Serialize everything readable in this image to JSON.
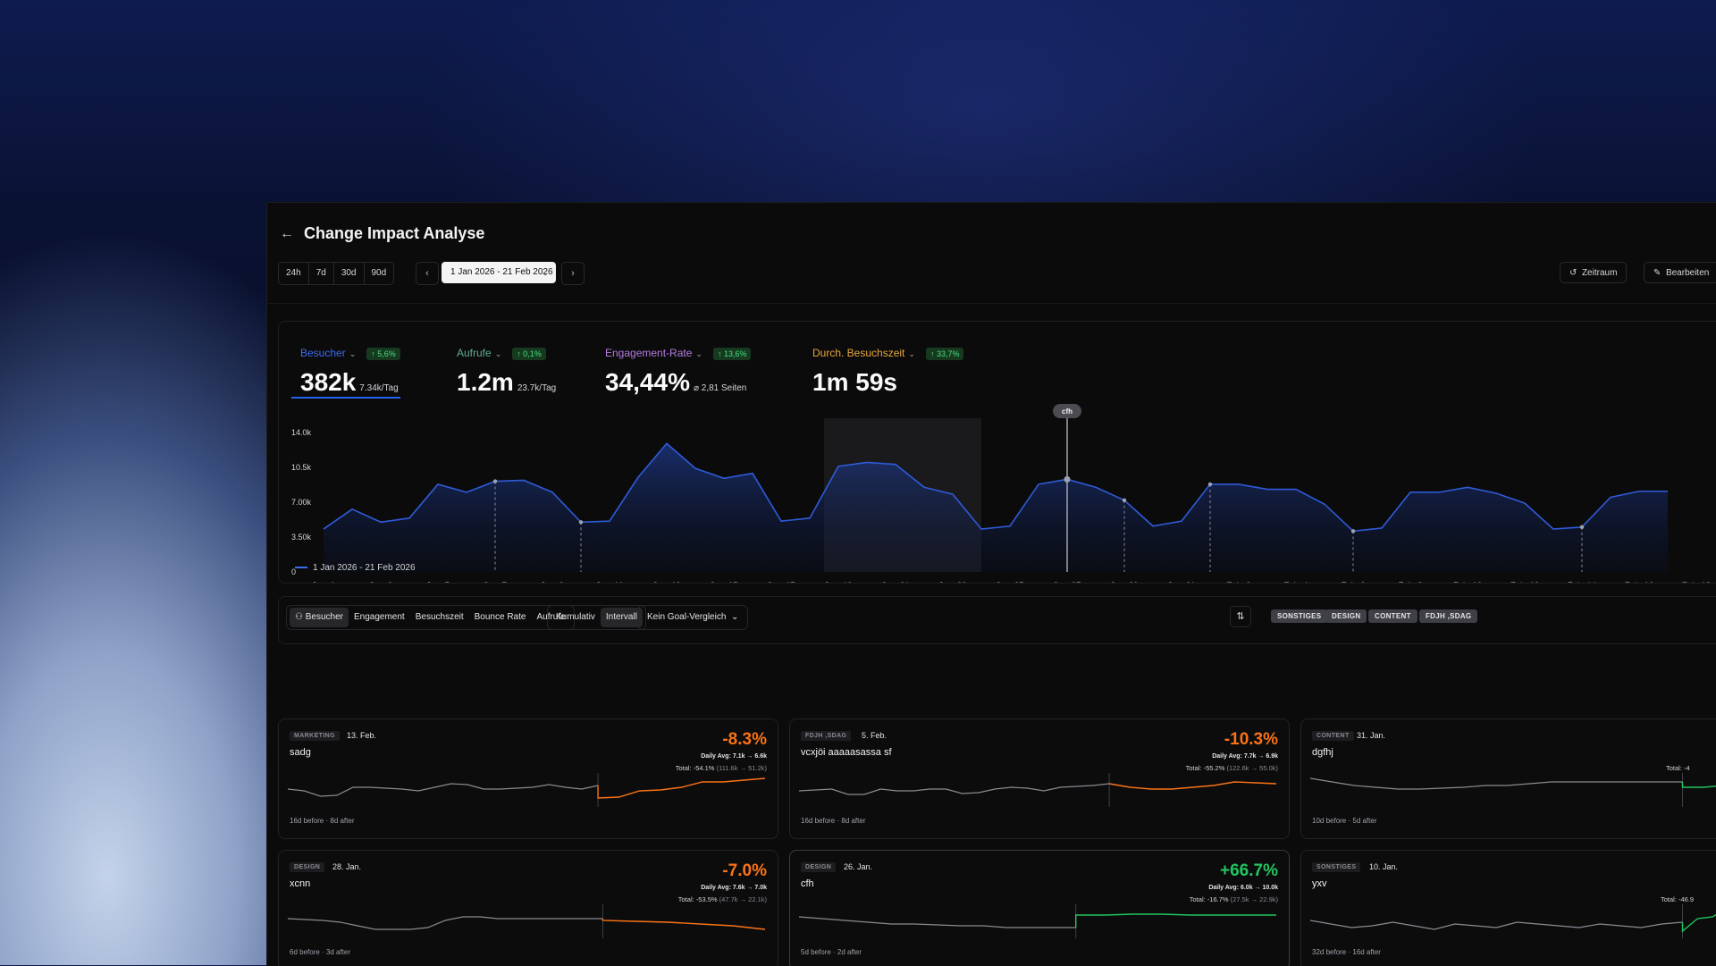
{
  "header": {
    "title": "Change Impact Analyse"
  },
  "range_buttons": [
    "24h",
    "7d",
    "30d",
    "90d"
  ],
  "date_range": "1 Jan 2026 - 21 Feb 2026",
  "actions": {
    "zeitraum": "Zeitraum",
    "bearbeiten": "Bearbeiten"
  },
  "metrics": [
    {
      "label": "Besucher",
      "badge": "↑ 5,6%",
      "value": "382k",
      "sub": "7.34k/Tag",
      "color": "#3b6cf0"
    },
    {
      "label": "Aufrufe",
      "badge": "↑ 0,1%",
      "value": "1.2m",
      "sub": "23.7k/Tag",
      "color": "#5fae8e"
    },
    {
      "label": "Engagement-Rate",
      "badge": "↑ 13,6%",
      "value": "34,44%",
      "sub": "⌀ 2,81 Seiten",
      "color": "#b57be0"
    },
    {
      "label": "Durch. Besuchszeit",
      "badge": "↑ 33,7%",
      "value": "1m 59s",
      "sub": "",
      "color": "#e8a63a"
    }
  ],
  "chart_data": {
    "type": "area",
    "ylim": [
      0,
      14000
    ],
    "yticks": [
      "14.0k",
      "10.5k",
      "7.00k",
      "3.50k",
      "0"
    ],
    "ytick_values": [
      14000,
      10500,
      7000,
      3500,
      0
    ],
    "xticks": [
      "Jan. 1",
      "Jan. 3",
      "Jan. 5",
      "Jan. 7",
      "Jan. 9",
      "Jan. 11",
      "Jan. 13",
      "Jan. 15",
      "Jan. 17",
      "Jan. 19",
      "Jan. 21",
      "Jan. 23",
      "Jan. 25",
      "Jan. 27",
      "Jan. 29",
      "Jan. 31",
      "Feb. 2",
      "Feb. 4",
      "Feb. 6",
      "Feb. 8",
      "Feb. 10",
      "Feb. 12",
      "Feb. 14",
      "Feb. 16",
      "Feb. 18"
    ],
    "series": [
      {
        "name": "1 Jan 2026 - 21 Feb 2026",
        "values": [
          4300,
          6300,
          5000,
          5400,
          8800,
          8000,
          9100,
          9200,
          8000,
          5000,
          5100,
          9500,
          12900,
          10400,
          9400,
          9900,
          5100,
          5400,
          10600,
          11000,
          10800,
          8500,
          7800,
          4300,
          4600,
          8800,
          9300,
          8500,
          7200,
          4600,
          5100,
          8800,
          8800,
          8300,
          8300,
          6800,
          4100,
          4400,
          8000,
          8000,
          8500,
          7900,
          6900,
          4300,
          4500,
          7500,
          8100,
          8100
        ]
      }
    ],
    "annotation_label": "cfh"
  },
  "filter_tabs": [
    "Besucher",
    "Engagement",
    "Besuchszeit",
    "Bounce Rate",
    "Aufrufe"
  ],
  "mode_tabs": [
    "Kumulativ",
    "Intervall"
  ],
  "goal_select": "Kein Goal-Vergleich",
  "category_chips": [
    "SONSTIGES",
    "DESIGN",
    "CONTENT",
    "FDJH ,SDAG"
  ],
  "change_cards": [
    {
      "tag": "MARKETING",
      "date": "13. Feb.",
      "name": "sadg",
      "pct": "-8.3%",
      "avg": "Daily Avg: 7.1k → 6.6k",
      "total": "Total: -54.1%",
      "total_detail": "(111.6k → 51.2k)",
      "foot": "16d before  ·  8d after",
      "color": "#f97316"
    },
    {
      "tag": "FDJH ,SDAG",
      "date": "5. Feb.",
      "name": "vcxjöi aaaaasassa sf",
      "pct": "-10.3%",
      "avg": "Daily Avg: 7.7k → 6.9k",
      "total": "Total: -55.2%",
      "total_detail": "(122.6k → 55.0k)",
      "foot": "16d before  ·  8d after",
      "color": "#f97316"
    },
    {
      "tag": "CONTENT",
      "date": "31. Jan.",
      "name": "dgfhj",
      "pct": "",
      "avg": "",
      "total": "Total: -4",
      "total_detail": "",
      "foot": "10d before  ·  5d after",
      "color": "#22c55e"
    },
    {
      "tag": "DESIGN",
      "date": "28. Jan.",
      "name": "xcnn",
      "pct": "-7.0%",
      "avg": "Daily Avg: 7.6k → 7.0k",
      "total": "Total: -53.5%",
      "total_detail": "(47.7k → 22.1k)",
      "foot": "6d before  ·  3d after",
      "color": "#f97316"
    },
    {
      "tag": "DESIGN",
      "date": "26. Jan.",
      "name": "cfh",
      "pct": "+66.7%",
      "avg": "Daily Avg: 6.0k → 10.0k",
      "total": "Total: -16.7%",
      "total_detail": "(27.5k → 22.9k)",
      "foot": "5d before  ·  2d after",
      "color": "#22c55e"
    },
    {
      "tag": "SONSTIGES",
      "date": "10. Jan.",
      "name": "yxv",
      "pct": "",
      "avg": "",
      "total": "Total: -46.9",
      "total_detail": "",
      "foot": "32d before  ·  16d after",
      "color": "#22c55e"
    }
  ]
}
